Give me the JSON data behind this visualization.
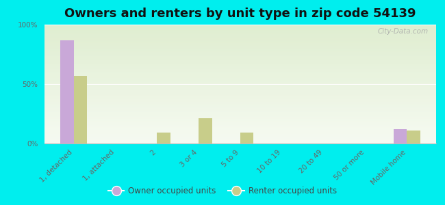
{
  "title": "Owners and renters by unit type in zip code 54139",
  "categories": [
    "1, detached",
    "1, attached",
    "2",
    "3 or 4",
    "5 to 9",
    "10 to 19",
    "20 to 49",
    "50 or more",
    "Mobile home"
  ],
  "owner_values": [
    87,
    0,
    0,
    0,
    0,
    0,
    0,
    0,
    12
  ],
  "renter_values": [
    57,
    0,
    9,
    21,
    9,
    0,
    0,
    0,
    11
  ],
  "owner_color": "#c9a8d8",
  "renter_color": "#c8cd8a",
  "background_color": "#00eeee",
  "plot_bg": "#edf5e0",
  "bar_width": 0.32,
  "ylim": [
    0,
    100
  ],
  "yticks": [
    0,
    50,
    100
  ],
  "ytick_labels": [
    "0%",
    "50%",
    "100%"
  ],
  "watermark": "City-Data.com",
  "legend_owner": "Owner occupied units",
  "legend_renter": "Renter occupied units",
  "title_fontsize": 13,
  "tick_fontsize": 7.5,
  "legend_fontsize": 8.5
}
